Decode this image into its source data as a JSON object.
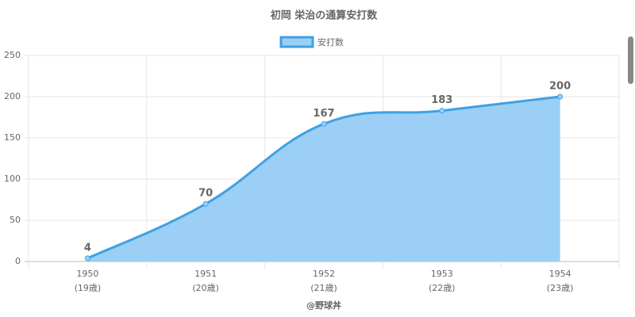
{
  "chart_data": {
    "type": "area",
    "title": "初岡 栄治の通算安打数",
    "x_label": "@野球丼",
    "categories": [
      "1950",
      "1951",
      "1952",
      "1953",
      "1954"
    ],
    "sub_labels": [
      "(19歳)",
      "(20歳)",
      "(21歳)",
      "(22歳)",
      "(23歳)"
    ],
    "series": [
      {
        "name": "安打数",
        "color": "#3ea1e4",
        "fill": "#9bcff5",
        "values": [
          4,
          70,
          167,
          183,
          200
        ]
      }
    ],
    "ylim": [
      0,
      250
    ],
    "yticks": [
      0,
      50,
      100,
      150,
      200,
      250
    ],
    "grid": true,
    "legend": "top"
  }
}
